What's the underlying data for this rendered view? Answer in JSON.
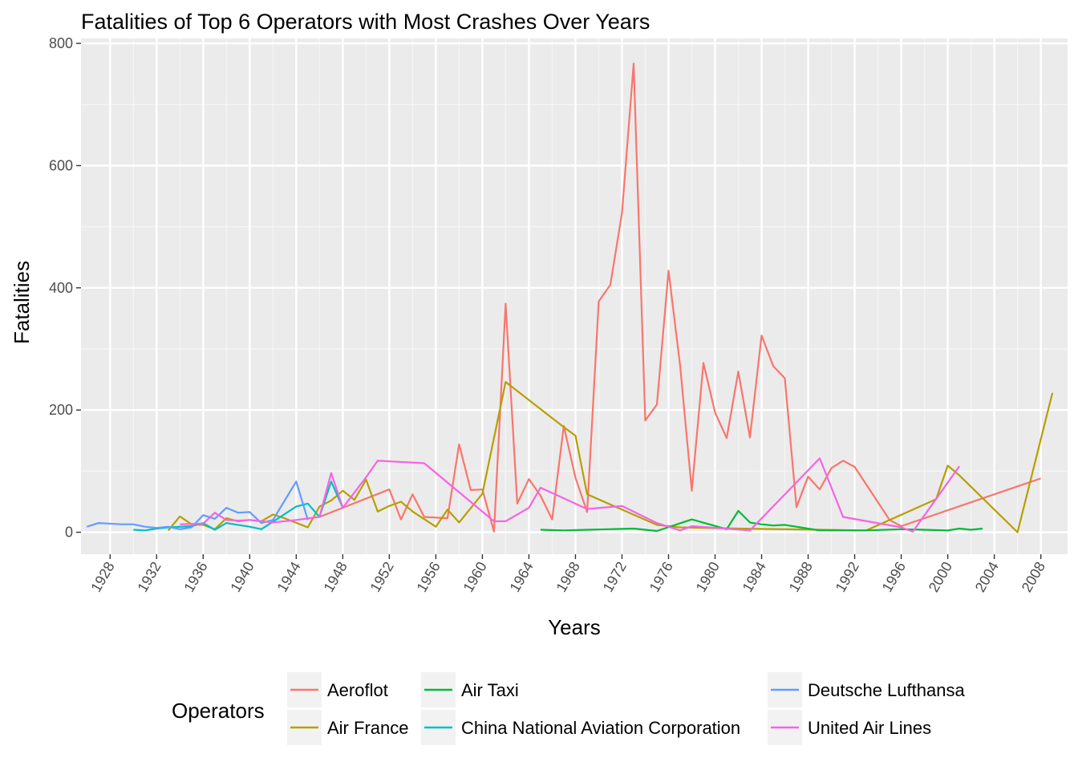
{
  "chart_data": {
    "type": "line",
    "title": "Fatalities of Top 6 Operators with Most Crashes Over Years",
    "xlabel": "Years",
    "ylabel": "Fatalities",
    "xlim": [
      1925.5,
      2010.3
    ],
    "ylim": [
      -36,
      808
    ],
    "x_ticks": [
      1928,
      1932,
      1936,
      1940,
      1944,
      1948,
      1952,
      1956,
      1960,
      1964,
      1968,
      1972,
      1976,
      1980,
      1984,
      1988,
      1992,
      1996,
      2000,
      2004,
      2008
    ],
    "y_ticks": [
      0,
      200,
      400,
      600,
      800
    ],
    "grid": true,
    "background": "#ebebeb",
    "legend": {
      "title": "Operators",
      "position": "bottom"
    },
    "series": [
      {
        "name": "Aeroflot",
        "color": "#f8766d",
        "points": [
          [
            1946,
            25
          ],
          [
            1952,
            70
          ],
          [
            1953,
            21
          ],
          [
            1954,
            62
          ],
          [
            1955,
            25
          ],
          [
            1957,
            23
          ],
          [
            1958,
            144
          ],
          [
            1959,
            69
          ],
          [
            1960,
            70
          ],
          [
            1961,
            1
          ],
          [
            1962,
            374
          ],
          [
            1963,
            47
          ],
          [
            1964,
            87
          ],
          [
            1965,
            60
          ],
          [
            1966,
            21
          ],
          [
            1967,
            174
          ],
          [
            1968,
            89
          ],
          [
            1969,
            33
          ],
          [
            1970,
            378
          ],
          [
            1971,
            405
          ],
          [
            1972,
            523
          ],
          [
            1973,
            767
          ],
          [
            1974,
            183
          ],
          [
            1975,
            209
          ],
          [
            1976,
            428
          ],
          [
            1977,
            272
          ],
          [
            1978,
            68
          ],
          [
            1979,
            277
          ],
          [
            1980,
            196
          ],
          [
            1981,
            154
          ],
          [
            1982,
            263
          ],
          [
            1983,
            155
          ],
          [
            1984,
            322
          ],
          [
            1985,
            272
          ],
          [
            1986,
            252
          ],
          [
            1987,
            41
          ],
          [
            1988,
            91
          ],
          [
            1989,
            70
          ],
          [
            1990,
            105
          ],
          [
            1991,
            117
          ],
          [
            1992,
            107
          ],
          [
            1995,
            20
          ],
          [
            1996,
            10
          ],
          [
            2008,
            88
          ]
        ]
      },
      {
        "name": "Air France",
        "color": "#b79f00",
        "points": [
          [
            1933,
            3
          ],
          [
            1934,
            26
          ],
          [
            1935,
            13
          ],
          [
            1936,
            12
          ],
          [
            1937,
            5
          ],
          [
            1938,
            23
          ],
          [
            1939,
            18
          ],
          [
            1940,
            20
          ],
          [
            1941,
            18
          ],
          [
            1942,
            29
          ],
          [
            1943,
            23
          ],
          [
            1945,
            8
          ],
          [
            1946,
            42
          ],
          [
            1947,
            52
          ],
          [
            1948,
            68
          ],
          [
            1949,
            53
          ],
          [
            1950,
            86
          ],
          [
            1951,
            34
          ],
          [
            1952,
            43
          ],
          [
            1953,
            50
          ],
          [
            1954,
            34
          ],
          [
            1956,
            9
          ],
          [
            1957,
            37
          ],
          [
            1958,
            16
          ],
          [
            1960,
            63
          ],
          [
            1962,
            246
          ],
          [
            1967,
            172
          ],
          [
            1968,
            158
          ],
          [
            1969,
            62
          ],
          [
            1975,
            12
          ],
          [
            1977,
            8
          ],
          [
            1982,
            6
          ],
          [
            1993,
            3
          ],
          [
            1999,
            54
          ],
          [
            2000,
            109
          ],
          [
            2001,
            93
          ],
          [
            2006,
            0
          ],
          [
            2009,
            228
          ]
        ]
      },
      {
        "name": "Air Taxi",
        "color": "#00ba38",
        "points": [
          [
            1965,
            4
          ],
          [
            1967,
            3
          ],
          [
            1969,
            4
          ],
          [
            1973,
            6
          ],
          [
            1975,
            2
          ],
          [
            1978,
            21
          ],
          [
            1981,
            5
          ],
          [
            1982,
            35
          ],
          [
            1983,
            16
          ],
          [
            1984,
            13
          ],
          [
            1985,
            11
          ],
          [
            1986,
            12
          ],
          [
            1989,
            3
          ],
          [
            1993,
            3
          ],
          [
            1996,
            5
          ],
          [
            1998,
            4
          ],
          [
            2000,
            3
          ],
          [
            2001,
            6
          ],
          [
            2002,
            4
          ],
          [
            2003,
            6
          ]
        ]
      },
      {
        "name": "China National Aviation Corporation",
        "color": "#00bfc4",
        "points": [
          [
            1930,
            4
          ],
          [
            1931,
            3
          ],
          [
            1932,
            6
          ],
          [
            1933,
            8
          ],
          [
            1935,
            10
          ],
          [
            1936,
            15
          ],
          [
            1937,
            4
          ],
          [
            1938,
            15
          ],
          [
            1939,
            12
          ],
          [
            1940,
            9
          ],
          [
            1941,
            5
          ],
          [
            1944,
            42
          ],
          [
            1945,
            47
          ],
          [
            1946,
            25
          ],
          [
            1947,
            83
          ],
          [
            1948,
            40
          ]
        ]
      },
      {
        "name": "Deutsche Lufthansa",
        "color": "#619cff",
        "points": [
          [
            1926,
            9
          ],
          [
            1927,
            15
          ],
          [
            1929,
            13
          ],
          [
            1930,
            13
          ],
          [
            1931,
            9
          ],
          [
            1932,
            7
          ],
          [
            1933,
            9
          ],
          [
            1934,
            5
          ],
          [
            1935,
            8
          ],
          [
            1936,
            28
          ],
          [
            1937,
            22
          ],
          [
            1938,
            40
          ],
          [
            1939,
            32
          ],
          [
            1940,
            33
          ],
          [
            1941,
            15
          ],
          [
            1942,
            20
          ],
          [
            1944,
            83
          ],
          [
            1945,
            20
          ]
        ]
      },
      {
        "name": "United Air Lines",
        "color": "#f564e3",
        "points": [
          [
            1934,
            13
          ],
          [
            1936,
            14
          ],
          [
            1937,
            32
          ],
          [
            1938,
            20
          ],
          [
            1939,
            19
          ],
          [
            1940,
            20
          ],
          [
            1942,
            16
          ],
          [
            1944,
            20
          ],
          [
            1946,
            25
          ],
          [
            1947,
            97
          ],
          [
            1948,
            40
          ],
          [
            1950,
            90
          ],
          [
            1951,
            117
          ],
          [
            1955,
            113
          ],
          [
            1961,
            18
          ],
          [
            1962,
            18
          ],
          [
            1964,
            40
          ],
          [
            1965,
            73
          ],
          [
            1969,
            38
          ],
          [
            1972,
            43
          ],
          [
            1975,
            15
          ],
          [
            1977,
            3
          ],
          [
            1978,
            10
          ],
          [
            1983,
            3
          ],
          [
            1989,
            121
          ],
          [
            1991,
            25
          ],
          [
            1996,
            8
          ],
          [
            1997,
            1
          ],
          [
            2001,
            108
          ]
        ]
      }
    ]
  }
}
